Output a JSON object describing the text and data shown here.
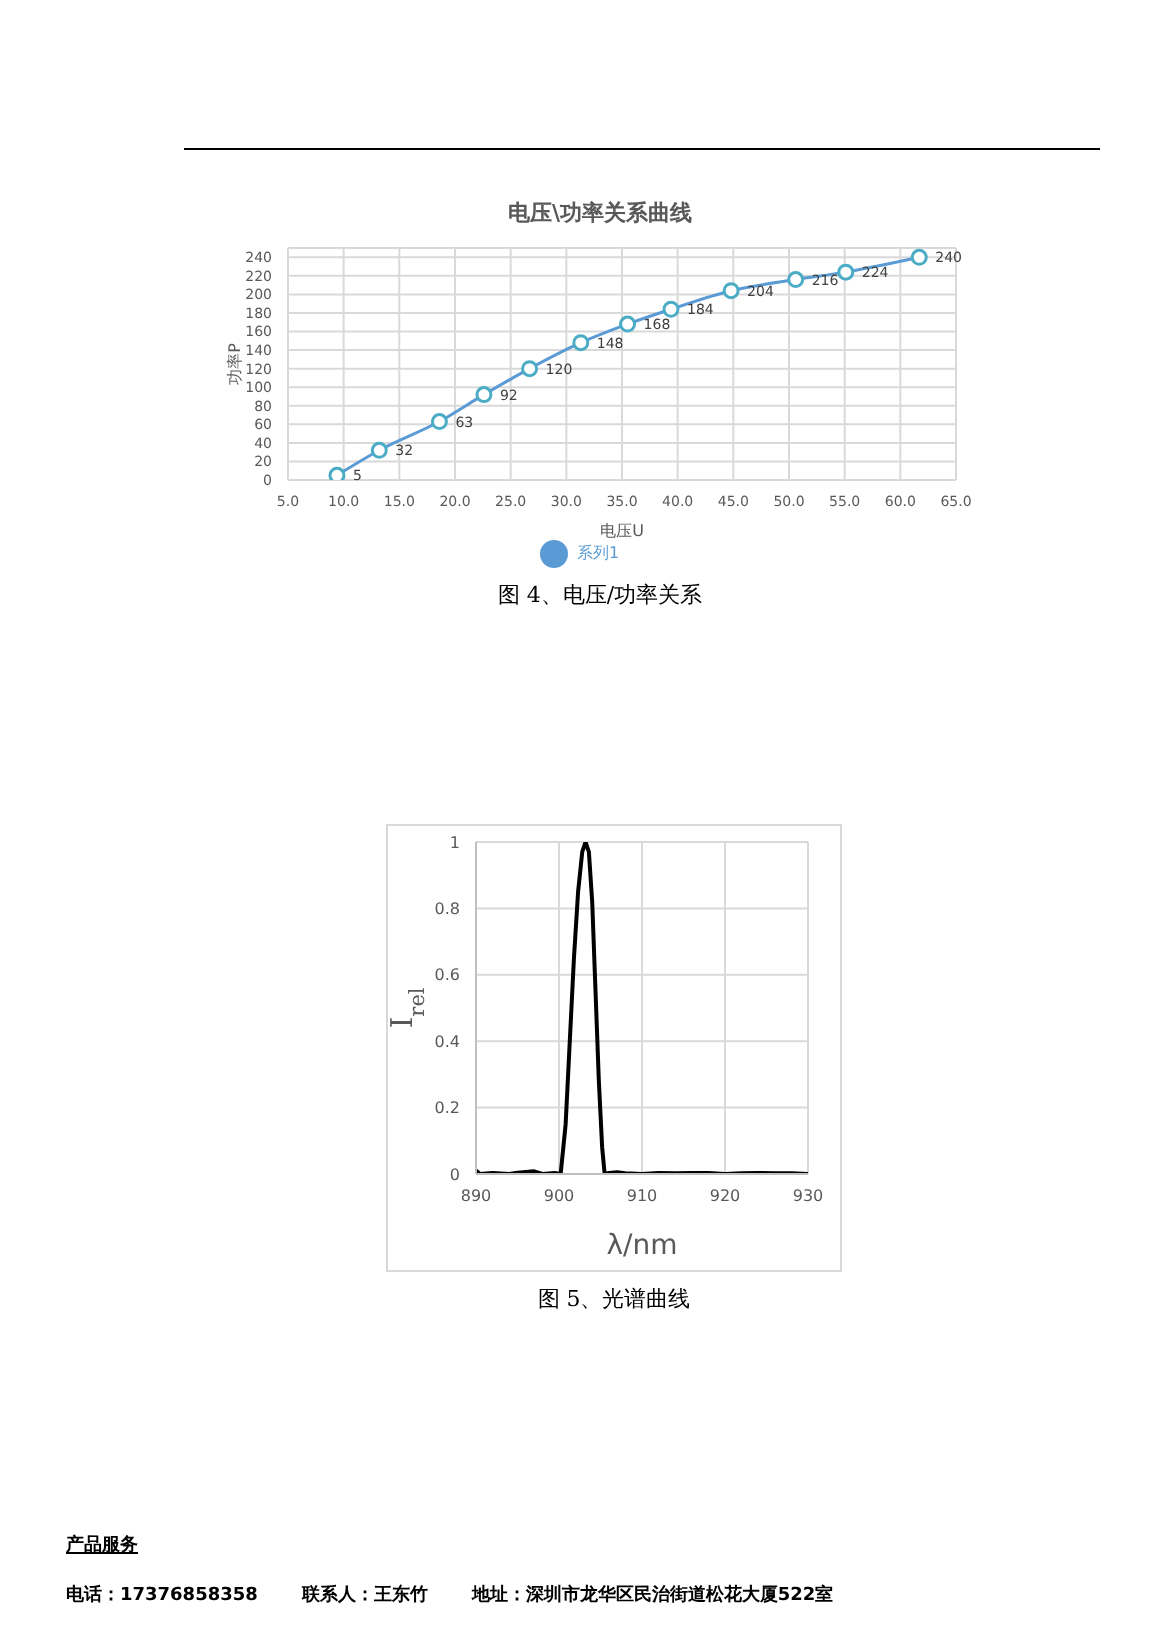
{
  "chart_data": [
    {
      "type": "line",
      "title": "电压\\功率关系曲线",
      "xlabel": "电压U",
      "ylabel": "功率P",
      "annotations": [
        "图 4、电压/功率关系"
      ],
      "x": [
        9.4,
        13.2,
        18.6,
        22.6,
        26.7,
        31.3,
        35.5,
        39.4,
        44.8,
        50.6,
        55.1,
        61.7
      ],
      "series": [
        {
          "name": "系列1",
          "color": "#5b9bd5",
          "values": [
            5,
            32,
            63,
            92,
            120,
            148,
            168,
            184,
            204,
            216,
            224,
            240
          ]
        }
      ],
      "xlim": [
        5,
        65
      ],
      "xticks": [
        {
          "value": 5,
          "label": "5.0"
        },
        {
          "value": 10,
          "label": "10.0"
        },
        {
          "value": 15,
          "label": "15.0"
        },
        {
          "value": 20,
          "label": "20.0"
        },
        {
          "value": 25,
          "label": "25.0"
        },
        {
          "value": 30,
          "label": "30.0"
        },
        {
          "value": 35,
          "label": "35.0"
        },
        {
          "value": 40,
          "label": "40.0"
        },
        {
          "value": 45,
          "label": "45.0"
        },
        {
          "value": 50,
          "label": "50.0"
        },
        {
          "value": 55,
          "label": "55.0"
        },
        {
          "value": 60,
          "label": "60.0"
        },
        {
          "value": 65,
          "label": "65.0"
        }
      ],
      "ylim": [
        0,
        250
      ],
      "yticks": [
        0,
        20,
        40,
        60,
        80,
        100,
        120,
        140,
        160,
        180,
        200,
        220,
        240
      ],
      "grid": true,
      "legend": "bottom",
      "marker": "circle",
      "line_style": "solid",
      "data_labels": true
    },
    {
      "type": "line",
      "xlabel": "λ/nm",
      "ylabel": "I$_{rel}$",
      "annotations": [
        "图 5、光谱曲线",
        "产品服务",
        "电话：17376858358",
        "联系人：王东竹",
        "地址：深圳市龙华区民治街道松花大厦522室"
      ],
      "x": [
        890,
        890.5,
        892,
        894,
        895,
        897,
        898,
        899.5,
        900.2,
        900.8,
        901.3,
        901.8,
        902.3,
        902.8,
        903.2,
        903.6,
        904,
        904.4,
        904.8,
        905.2,
        905.5,
        906,
        907,
        908,
        910,
        912,
        914,
        916,
        918,
        920,
        922,
        924,
        926,
        928,
        930
      ],
      "series": [
        {
          "color": "#000000",
          "values": [
            0.01,
            0,
            0.003,
            0,
            0.004,
            0.008,
            0,
            0.003,
            0,
            0.15,
            0.4,
            0.65,
            0.85,
            0.97,
            1,
            0.97,
            0.82,
            0.55,
            0.28,
            0.08,
            0,
            0.003,
            0.005,
            0.002,
            0,
            0.003,
            0.002,
            0.003,
            0.003,
            0,
            0.002,
            0.003,
            0.002,
            0.002,
            0
          ]
        }
      ],
      "xlim": [
        890,
        930
      ],
      "xticks": [
        890,
        900,
        910,
        920,
        930
      ],
      "ylim": [
        0,
        1
      ],
      "yticks": [
        0,
        0.2,
        0.4,
        0.6,
        0.8,
        1
      ],
      "grid": true,
      "legend": false,
      "marker": "none",
      "line_style": "solid"
    }
  ]
}
